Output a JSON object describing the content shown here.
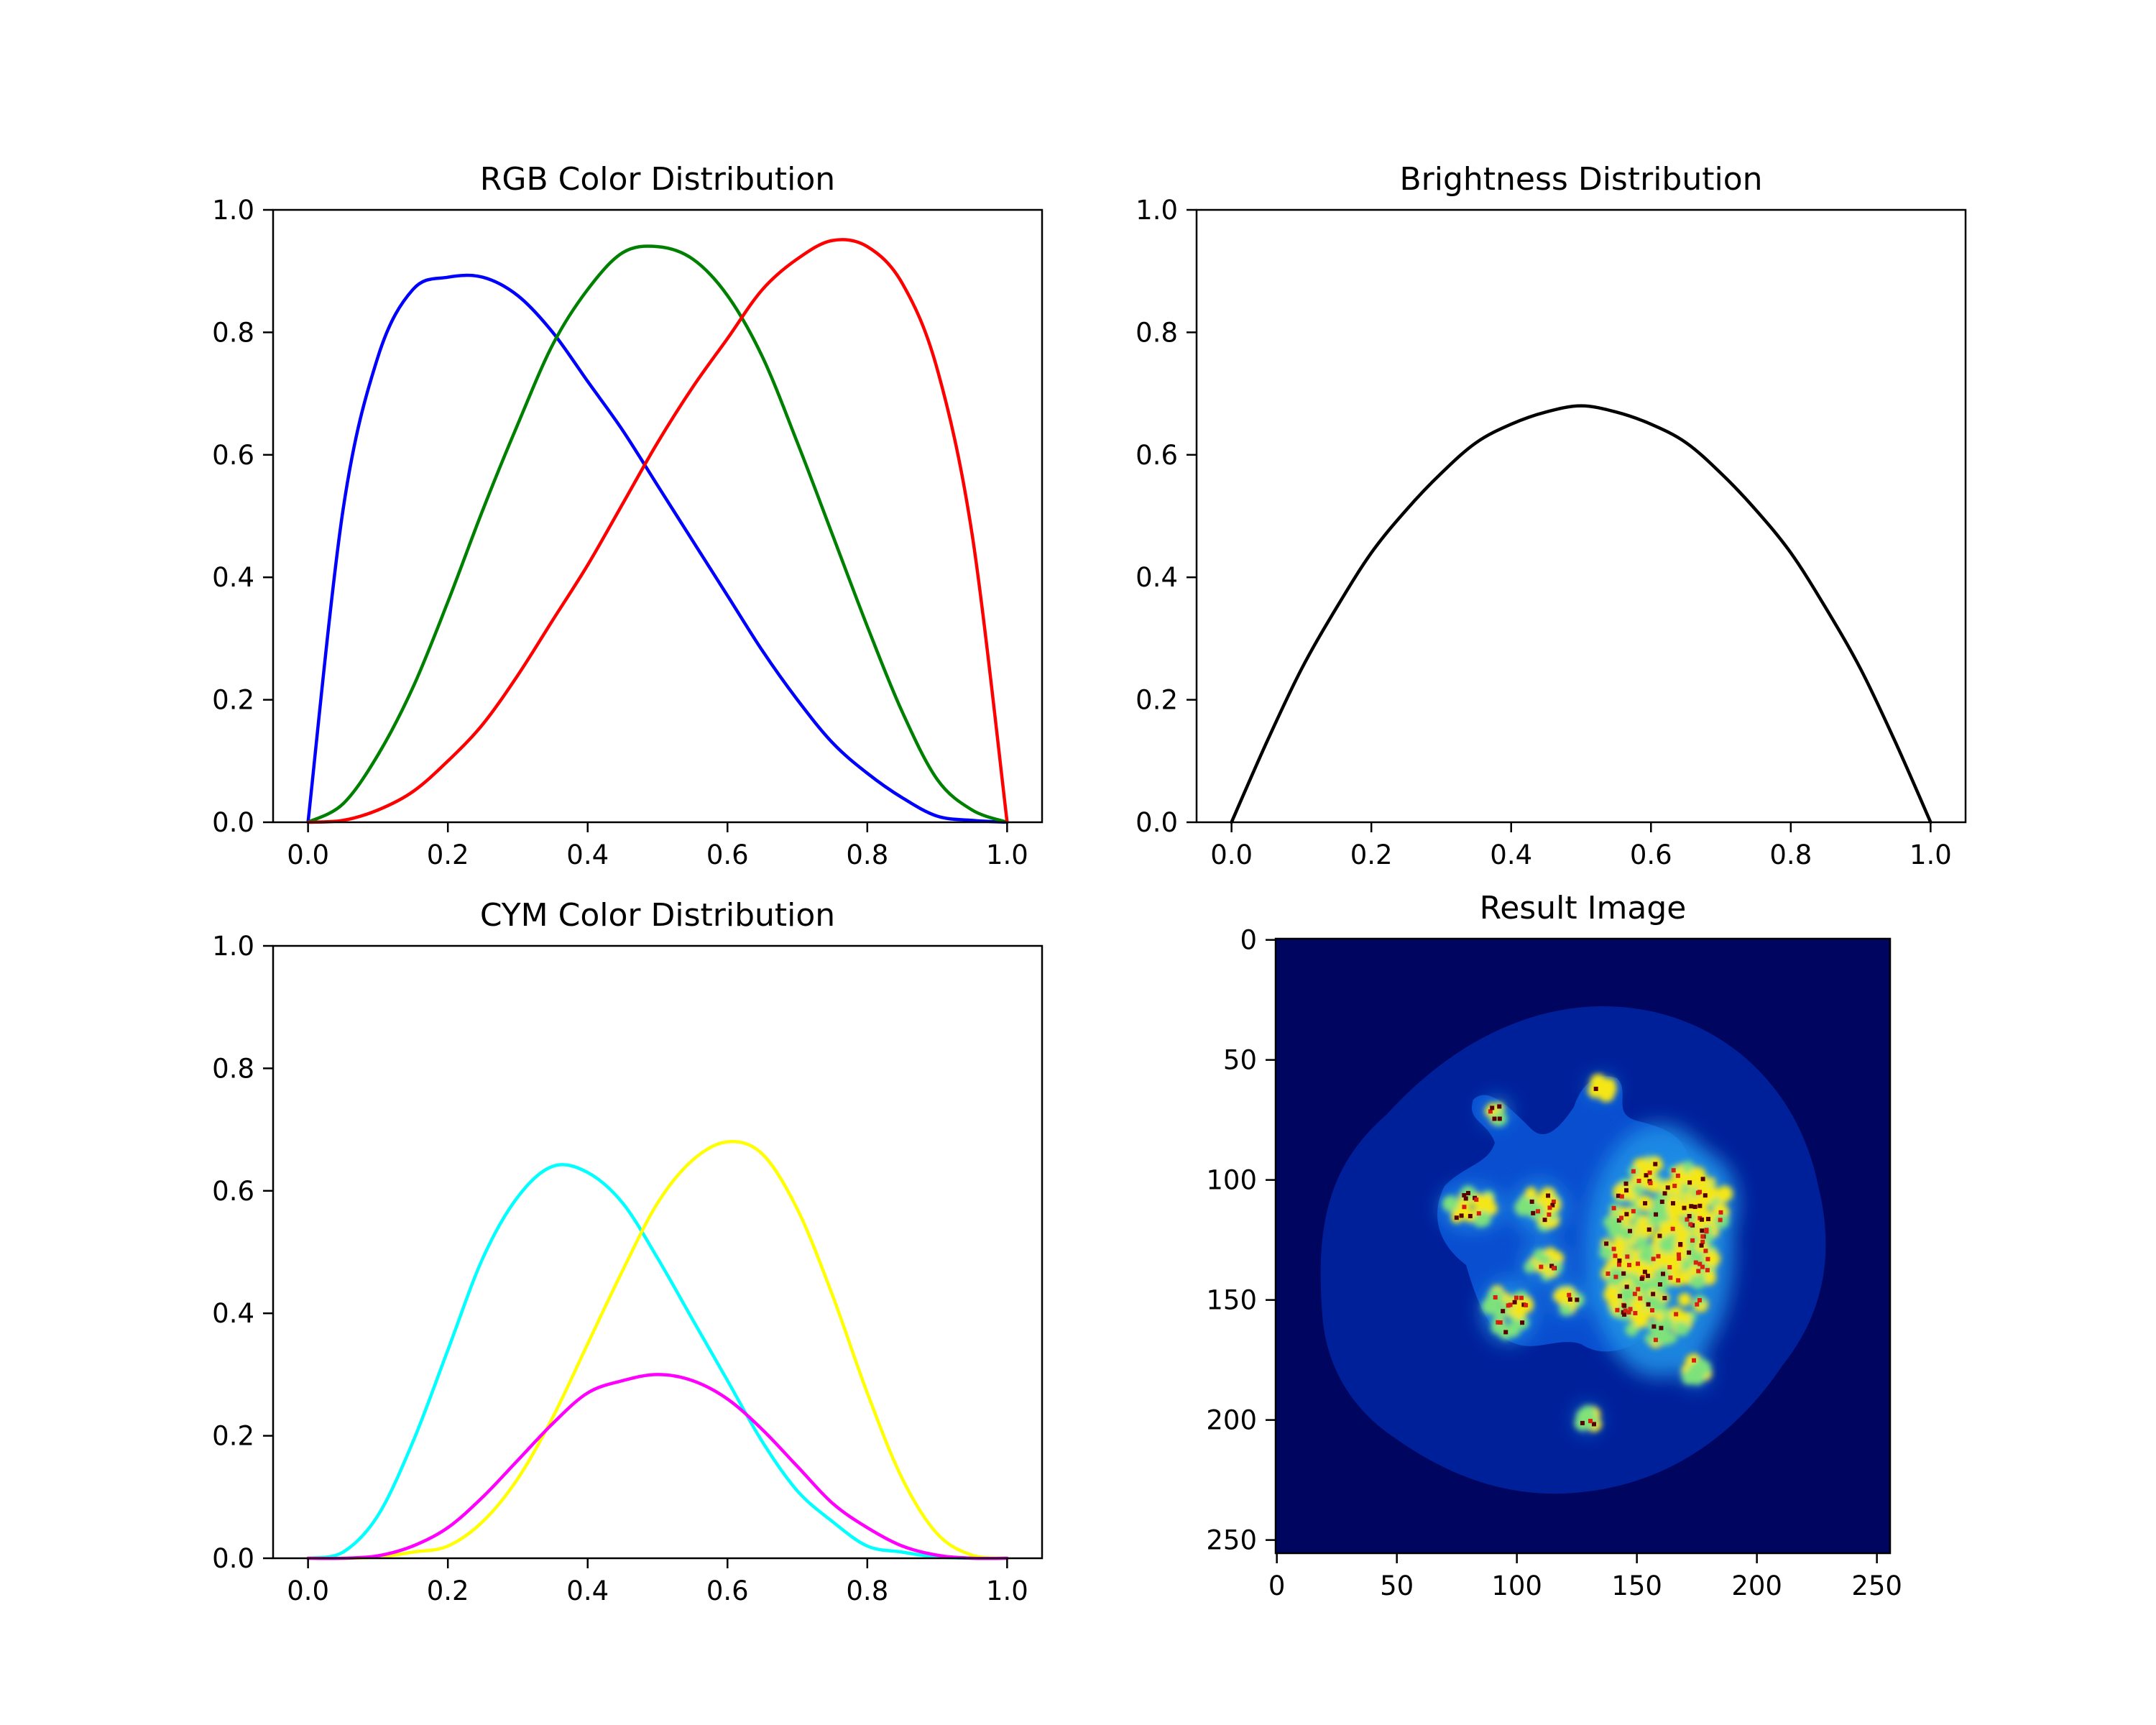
{
  "chart_data": [
    {
      "type": "line",
      "title": "RGB Color Distribution",
      "xlabel": "",
      "ylabel": "",
      "xlim": [
        -0.05,
        1.05
      ],
      "ylim": [
        0.0,
        1.0
      ],
      "xticks": [
        "0.0",
        "0.2",
        "0.4",
        "0.6",
        "0.8",
        "1.0"
      ],
      "yticks": [
        "0.0",
        "0.2",
        "0.4",
        "0.6",
        "0.8",
        "1.0"
      ],
      "grid": false,
      "x": [
        0,
        0.05,
        0.1,
        0.15,
        0.2,
        0.25,
        0.3,
        0.35,
        0.4,
        0.45,
        0.5,
        0.55,
        0.6,
        0.65,
        0.7,
        0.75,
        0.8,
        0.85,
        0.9,
        0.95,
        1.0
      ],
      "series": [
        {
          "color": "#0000ff",
          "values": [
            0,
            0.51,
            0.76,
            0.87,
            0.89,
            0.89,
            0.86,
            0.8,
            0.72,
            0.64,
            0.55,
            0.46,
            0.37,
            0.28,
            0.2,
            0.13,
            0.08,
            0.04,
            0.01,
            0.003,
            0
          ]
        },
        {
          "color": "#008000",
          "values": [
            0,
            0.03,
            0.11,
            0.22,
            0.36,
            0.51,
            0.65,
            0.78,
            0.87,
            0.93,
            0.94,
            0.92,
            0.86,
            0.76,
            0.62,
            0.47,
            0.32,
            0.18,
            0.07,
            0.02,
            0
          ]
        },
        {
          "color": "#ff0000",
          "values": [
            0,
            0.003,
            0.02,
            0.05,
            0.1,
            0.16,
            0.24,
            0.33,
            0.42,
            0.52,
            0.62,
            0.71,
            0.79,
            0.87,
            0.92,
            0.95,
            0.94,
            0.88,
            0.74,
            0.47,
            0
          ]
        }
      ]
    },
    {
      "type": "line",
      "title": "Brightness Distribution",
      "xlabel": "",
      "ylabel": "",
      "xlim": [
        -0.05,
        1.05
      ],
      "ylim": [
        0.0,
        1.0
      ],
      "xticks": [
        "0.0",
        "0.2",
        "0.4",
        "0.6",
        "0.8",
        "1.0"
      ],
      "yticks": [
        "0.0",
        "0.2",
        "0.4",
        "0.6",
        "0.8",
        "1.0"
      ],
      "grid": false,
      "x": [
        0,
        0.05,
        0.1,
        0.15,
        0.2,
        0.25,
        0.3,
        0.35,
        0.4,
        0.45,
        0.5,
        0.55,
        0.6,
        0.65,
        0.7,
        0.75,
        0.8,
        0.85,
        0.9,
        0.95,
        1.0
      ],
      "series": [
        {
          "color": "#000000",
          "values": [
            0,
            0.13,
            0.25,
            0.35,
            0.44,
            0.51,
            0.57,
            0.62,
            0.65,
            0.67,
            0.68,
            0.67,
            0.65,
            0.62,
            0.57,
            0.51,
            0.44,
            0.35,
            0.25,
            0.13,
            0
          ]
        }
      ]
    },
    {
      "type": "line",
      "title": "CYM Color Distribution",
      "xlabel": "",
      "ylabel": "",
      "xlim": [
        -0.05,
        1.05
      ],
      "ylim": [
        0.0,
        1.0
      ],
      "xticks": [
        "0.0",
        "0.2",
        "0.4",
        "0.6",
        "0.8",
        "1.0"
      ],
      "yticks": [
        "0.0",
        "0.2",
        "0.4",
        "0.6",
        "0.8",
        "1.0"
      ],
      "grid": false,
      "x": [
        0,
        0.05,
        0.1,
        0.15,
        0.2,
        0.25,
        0.3,
        0.35,
        0.4,
        0.45,
        0.5,
        0.55,
        0.6,
        0.65,
        0.7,
        0.75,
        0.8,
        0.85,
        0.9,
        0.95,
        1.0
      ],
      "series": [
        {
          "color": "#00ffff",
          "values": [
            0,
            0.01,
            0.07,
            0.19,
            0.34,
            0.49,
            0.59,
            0.64,
            0.63,
            0.58,
            0.49,
            0.39,
            0.29,
            0.19,
            0.11,
            0.06,
            0.02,
            0.01,
            0.002,
            0,
            0
          ]
        },
        {
          "color": "#ffff00",
          "values": [
            0,
            0,
            0.002,
            0.01,
            0.02,
            0.06,
            0.13,
            0.23,
            0.35,
            0.47,
            0.58,
            0.65,
            0.68,
            0.66,
            0.57,
            0.43,
            0.27,
            0.13,
            0.04,
            0.005,
            0
          ]
        },
        {
          "color": "#ff00ff",
          "values": [
            0,
            0,
            0.004,
            0.02,
            0.05,
            0.1,
            0.16,
            0.22,
            0.27,
            0.29,
            0.3,
            0.29,
            0.26,
            0.21,
            0.15,
            0.09,
            0.05,
            0.02,
            0.005,
            0,
            0
          ]
        }
      ]
    },
    {
      "type": "heatmap",
      "title": "Result Image",
      "xlabel": "",
      "ylabel": "",
      "xlim": [
        0,
        255
      ],
      "ylim": [
        255,
        0
      ],
      "xticks": [
        "0",
        "50",
        "100",
        "150",
        "200",
        "250"
      ],
      "yticks": [
        "0",
        "50",
        "100",
        "150",
        "200",
        "250"
      ],
      "colormap": "jet",
      "background_color": "#00055f",
      "levels": [
        {
          "name": "outer",
          "color": "#00209a"
        },
        {
          "name": "inner",
          "color": "#0a4ed0"
        },
        {
          "name": "mid",
          "color": "#1e8fe6"
        },
        {
          "name": "high",
          "color": "#7ee27a"
        },
        {
          "name": "peak",
          "color": "#f5e612"
        },
        {
          "name": "max",
          "color": "#d8200e"
        }
      ]
    }
  ]
}
